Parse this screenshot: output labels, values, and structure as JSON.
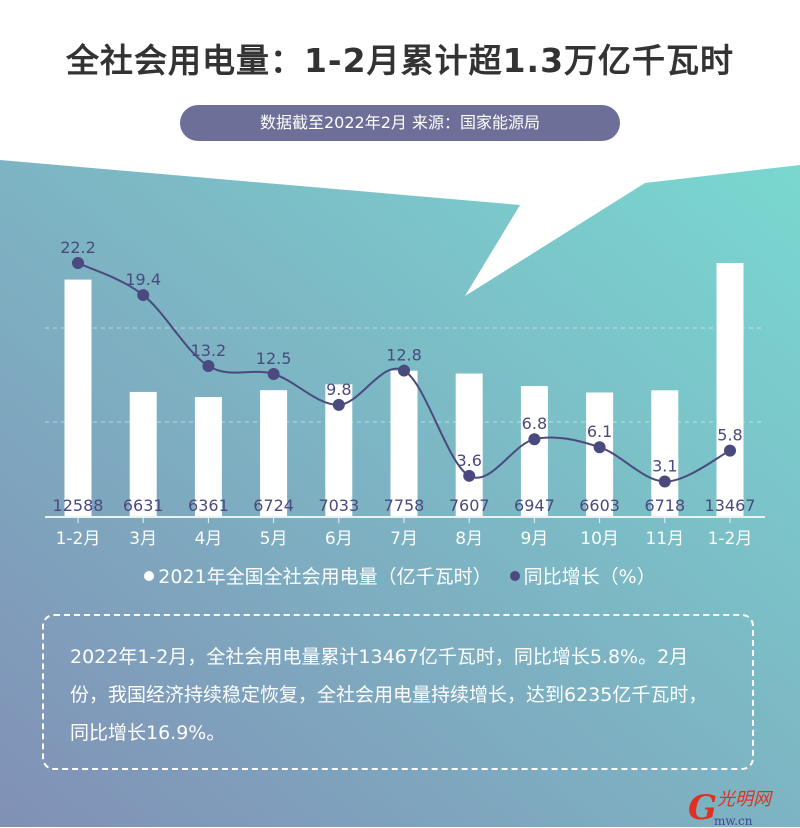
{
  "header": {
    "title": "全社会用电量：1-2月累计超1.3万亿千瓦时",
    "source": "数据截至2022年2月    来源：国家能源局"
  },
  "colors": {
    "bar": "#ffffff",
    "line": "#4a4a7e",
    "bg_top": "#79d8d0",
    "bg_bottom": "#8190b6",
    "badge": "#6e6f98"
  },
  "chart_data": {
    "type": "bar+line",
    "categories": [
      "1-2月",
      "3月",
      "4月",
      "5月",
      "6月",
      "7月",
      "8月",
      "9月",
      "10月",
      "11月",
      "1-2月"
    ],
    "series": [
      {
        "name": "2021年全国全社会用电量（亿千瓦时）",
        "type": "bar",
        "values": [
          12588,
          6631,
          6361,
          6724,
          7033,
          7758,
          7607,
          6947,
          6603,
          6718,
          13467
        ]
      },
      {
        "name": "同比增长（%）",
        "type": "line",
        "values": [
          22.2,
          19.4,
          13.2,
          12.5,
          9.8,
          12.8,
          3.6,
          6.8,
          6.1,
          3.1,
          5.8
        ]
      }
    ],
    "grid": "dashed horizontal",
    "legend": "bottom"
  },
  "legend": {
    "bar": "2021年全国全社会用电量（亿千瓦时）",
    "line": "同比增长（%）"
  },
  "note": "2022年1-2月，全社会用电量累计13467亿千瓦时，同比增长5.8%。2月份，我国经济持续稳定恢复，全社会用电量持续增长，达到6235亿千瓦时，同比增长16.9%。",
  "logo": {
    "text": "光明网",
    "domain": "Gmw.cn"
  }
}
